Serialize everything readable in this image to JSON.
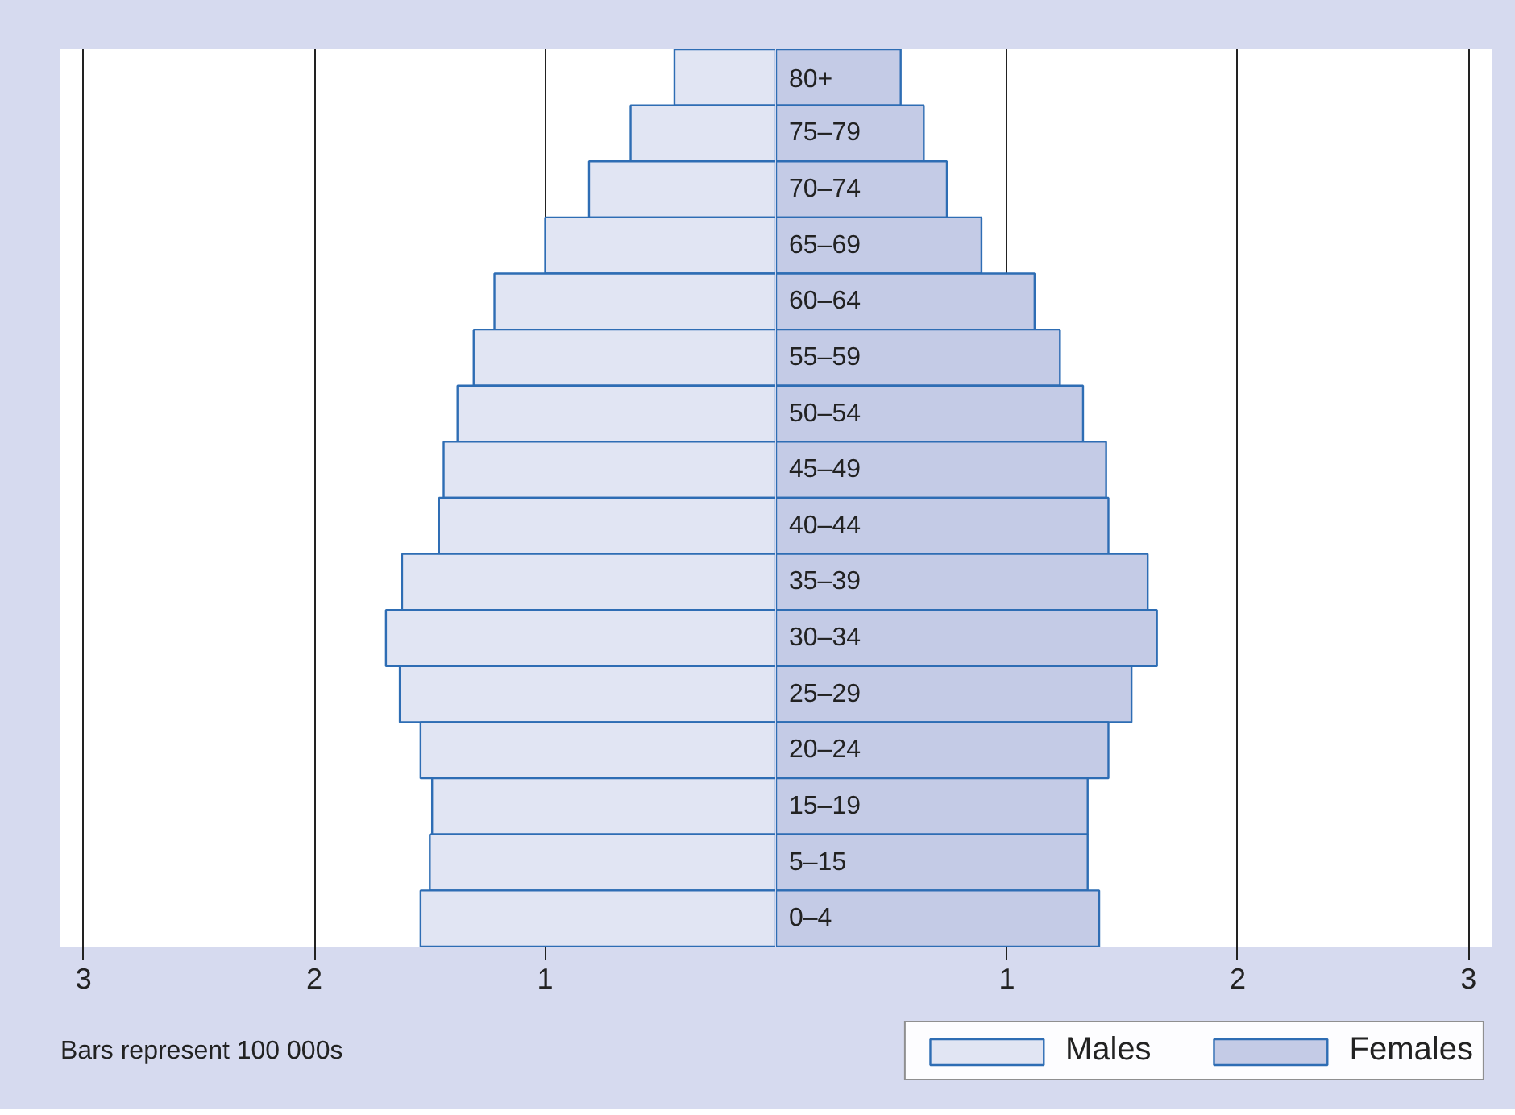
{
  "chart_data": [
    {
      "type": "bar",
      "orientation": "horizontal",
      "categories": [
        null,
        null,
        null,
        null,
        null,
        null,
        null,
        null,
        null,
        null,
        null,
        null,
        null,
        null,
        null,
        null
      ],
      "series": [
        {
          "name": "Males",
          "color": "#e1e5f3",
          "values": [
            0.44,
            0.63,
            0.81,
            1.0,
            1.22,
            1.31,
            1.38,
            1.44,
            1.46,
            1.62,
            1.69,
            1.63,
            1.54,
            1.49,
            1.5,
            1.54
          ]
        }
      ],
      "xlim": [
        3.1,
        0
      ],
      "xticks": [
        3,
        2,
        1
      ],
      "grid": "x",
      "legend": "bottom right",
      "tick_labels": "x",
      "annotations": [
        "Bars represent 100 000s"
      ]
    },
    {
      "type": "bar",
      "orientation": "horizontal",
      "categories": [
        "80+",
        "75–79",
        "70–74",
        "65–69",
        "60–64",
        "55–59",
        "50–54",
        "45–49",
        "40–44",
        "35–39",
        "30–34",
        "25–29",
        "20–24",
        "15–19",
        "5–15",
        "0–4"
      ],
      "series": [
        {
          "name": "Females",
          "color": "#c4cbe6",
          "values": [
            0.54,
            0.64,
            0.74,
            0.89,
            1.12,
            1.23,
            1.33,
            1.43,
            1.44,
            1.61,
            1.65,
            1.54,
            1.44,
            1.35,
            1.35,
            1.4
          ]
        }
      ],
      "xlim": [
        0,
        3.1
      ],
      "xticks": [
        1,
        2,
        3
      ],
      "grid": "x",
      "legend": "bottom right",
      "tick_labels": "x"
    }
  ]
}
